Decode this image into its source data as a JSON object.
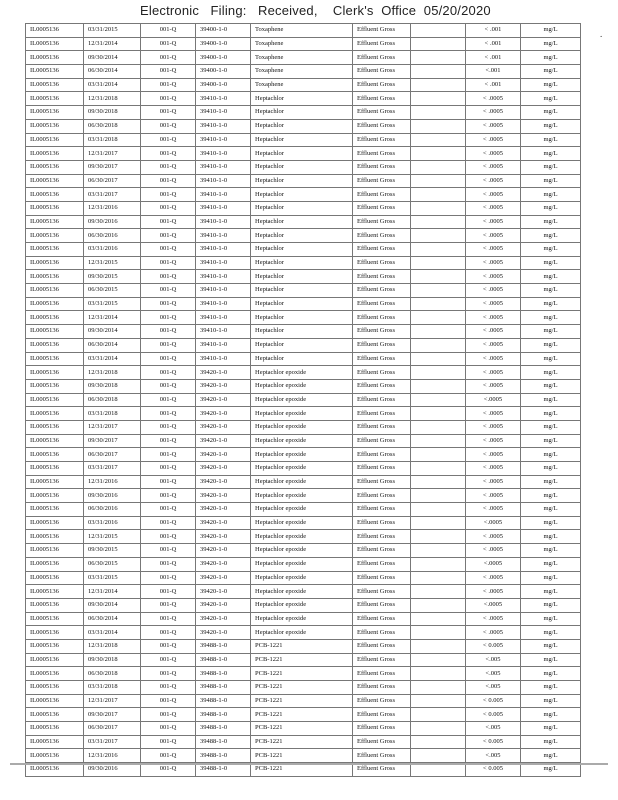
{
  "stamp": "Electronic   Filing:   Received,    Clerk's  Office  05/20/2020",
  "rows": [
    [
      "IL0005136",
      "03/31/2015",
      "001-Q",
      "39400-1-0",
      "Toxaphene",
      "Effluent  Gross",
      "< .001",
      "mg/L"
    ],
    [
      "IL0005136",
      "12/31/2014",
      "001-Q",
      "39400-1-0",
      "Toxaphene",
      "Effluent  Gross",
      "< .001",
      "mg/L"
    ],
    [
      "IL0005136",
      "09/30/2014",
      "001-Q",
      "39400-1-0",
      "Toxaphene",
      "Effluent  Gross",
      "< .001",
      "mg/L"
    ],
    [
      "IL0005136",
      "06/30/2014",
      "001-Q",
      "39400-1-0",
      "Toxaphene",
      "Effluent  Gross",
      "<.001",
      "mg/L"
    ],
    [
      "IL0005136",
      "03/31/2014",
      "001-Q",
      "39400-1-0",
      "Toxaphene",
      "Effluent  Gross",
      "< .001",
      "mg/L"
    ],
    [
      "IL0005136",
      "12/31/2018",
      "001-Q",
      "39410-1-0",
      "Heptachlor",
      "Effluent  Gross",
      "< .0005",
      "mg/L"
    ],
    [
      "IL0005136",
      "09/30/2018",
      "001-Q",
      "39410-1-0",
      "Heptachlor",
      "Effluent  Gross",
      "< .0005",
      "mg/L"
    ],
    [
      "IL0005136",
      "06/30/2018",
      "001-Q",
      "39410-1-0",
      "Heptachlor",
      "Effluent  Gross",
      "< .0005",
      "mg/L"
    ],
    [
      "IL0005136",
      "03/31/2018",
      "001-Q",
      "39410-1-0",
      "Heptachlor",
      "Effluent  Gross",
      "< .0005",
      "mg/L"
    ],
    [
      "IL0005136",
      "12/31/2017",
      "001-Q",
      "39410-1-0",
      "Heptachlor",
      "Effluent  Gross",
      "< .0005",
      "mg/L"
    ],
    [
      "IL0005136",
      "09/30/2017",
      "001-Q",
      "39410-1-0",
      "Heptachlor",
      "Effluent  Gross",
      "< .0005",
      "mg/L"
    ],
    [
      "IL0005136",
      "06/30/2017",
      "001-Q",
      "39410-1-0",
      "Heptachlor",
      "Effluent  Gross",
      "< .0005",
      "mg/L"
    ],
    [
      "IL0005136",
      "03/31/2017",
      "001-Q",
      "39410-1-0",
      "Heptachlor",
      "Effluent  Gross",
      "< .0005",
      "mg/L"
    ],
    [
      "IL0005136",
      "12/31/2016",
      "001-Q",
      "39410-1-0",
      "Heptachlor",
      "Effluent  Gross",
      "< .0005",
      "mg/L"
    ],
    [
      "IL0005136",
      "09/30/2016",
      "001-Q",
      "39410-1-0",
      "Heptachlor",
      "Effluent  Gross",
      "< .0005",
      "mg/L"
    ],
    [
      "IL0005136",
      "06/30/2016",
      "001-Q",
      "39410-1-0",
      "Heptachlor",
      "Effluent  Gross",
      "< .0005",
      "mg/L"
    ],
    [
      "IL0005136",
      "03/31/2016",
      "001-Q",
      "39410-1-0",
      "Heptachlor",
      "Effluent  Gross",
      "< .0005",
      "mg/L"
    ],
    [
      "IL0005136",
      "12/31/2015",
      "001-Q",
      "39410-1-0",
      "Heptachlor",
      "Effluent  Gross",
      "< .0005",
      "mg/L"
    ],
    [
      "IL0005136",
      "09/30/2015",
      "001-Q",
      "39410-1-0",
      "Heptachlor",
      "Effluent  Gross",
      "< .0005",
      "mg/L"
    ],
    [
      "IL0005136",
      "06/30/2015",
      "001-Q",
      "39410-1-0",
      "Heptachlor",
      "Effluent  Gross",
      "< .0005",
      "mg/L"
    ],
    [
      "IL0005136",
      "03/31/2015",
      "001-Q",
      "39410-1-0",
      "Heptachlor",
      "Effluent  Gross",
      "< .0005",
      "mg/L"
    ],
    [
      "IL0005136",
      "12/31/2014",
      "001-Q",
      "39410-1-0",
      "Heptachlor",
      "Effluent  Gross",
      "< .0005",
      "mg/L"
    ],
    [
      "IL0005136",
      "09/30/2014",
      "001-Q",
      "39410-1-0",
      "Heptachlor",
      "Effluent  Gross",
      "< .0005",
      "mg/L"
    ],
    [
      "IL0005136",
      "06/30/2014",
      "001-Q",
      "39410-1-0",
      "Heptachlor",
      "Effluent  Gross",
      "< .0005",
      "mg/L"
    ],
    [
      "IL0005136",
      "03/31/2014",
      "001-Q",
      "39410-1-0",
      "Heptachlor",
      "Effluent  Gross",
      "< .0005",
      "mg/L"
    ],
    [
      "IL0005136",
      "12/31/2018",
      "001-Q",
      "39420-1-0",
      "Heptachlor  epoxide",
      "Effluent  Gross",
      "< .0005",
      "mg/L"
    ],
    [
      "IL0005136",
      "09/30/2018",
      "001-Q",
      "39420-1-0",
      "Heptachlor  epoxide",
      "Effluent  Gross",
      "< .0005",
      "mg/L"
    ],
    [
      "IL0005136",
      "06/30/2018",
      "001-Q",
      "39420-1-0",
      "Heptachlor  epoxide",
      "Effluent  Gross",
      "<.0005",
      "mg/L"
    ],
    [
      "IL0005136",
      "03/31/2018",
      "001-Q",
      "39420-1-0",
      "Heptachlor  epoxide",
      "Effluent  Gross",
      "< .0005",
      "mg/L"
    ],
    [
      "IL0005136",
      "12/31/2017",
      "001-Q",
      "39420-1-0",
      "Heptachlor  epoxide",
      "Effluent  Gross",
      "< .0005",
      "mg/L"
    ],
    [
      "IL0005136",
      "09/30/2017",
      "001-Q",
      "39420-1-0",
      "Heptachlor epoxide",
      "Effluent  Gross",
      "< .0005",
      "mg/L"
    ],
    [
      "IL0005136",
      "06/30/2017",
      "001-Q",
      "39420-1-0",
      "Heptachlor  epoxide",
      "Effluent  Gross",
      "< .0005",
      "mg/L"
    ],
    [
      "IL0005136",
      "03/31/2017",
      "001-Q",
      "39420-1-0",
      "Heptachlor  epoxide",
      "Effluent  Gross",
      "< .0005",
      "mg/L"
    ],
    [
      "IL0005136",
      "12/31/2016",
      "001-Q",
      "39420-1-0",
      "Heptachlor epoxide",
      "Effluent  Gross",
      "< .0005",
      "mg/L"
    ],
    [
      "IL0005136",
      "09/30/2016",
      "001-Q",
      "39420-1-0",
      "Heptachlor  epoxide",
      "Effluent  Gross",
      "< .0005",
      "mg/L"
    ],
    [
      "IL0005136",
      "06/30/2016",
      "001-Q",
      "39420-1-0",
      "Heptachlor  epoxide",
      "Effluent  Gross",
      "< .0005",
      "mg/L"
    ],
    [
      "IL0005136",
      "03/31/2016",
      "001-Q",
      "39420-1-0",
      "Heptachlor  epoxide",
      "Effluent  Gross",
      "<.0005",
      "mg/L"
    ],
    [
      "IL0005136",
      "12/31/2015",
      "001-Q",
      "39420-1-0",
      "Heptachlor  epoxide",
      "Effluent  Gross",
      "< .0005",
      "mg/L"
    ],
    [
      "IL0005136",
      "09/30/2015",
      "001-Q",
      "39420-1-0",
      "Heptachlor  epoxide",
      "Effluent  Gross",
      "< .0005",
      "mg/L"
    ],
    [
      "IL0005136",
      "06/30/2015",
      "001-Q",
      "39420-1-0",
      "Heptachlor  epoxide",
      "Effluent  Gross",
      "<.0005",
      "mg/L"
    ],
    [
      "IL0005136",
      "03/31/2015",
      "001-Q",
      "39420-1-0",
      "Heptachlor  epoxide",
      "Effluent  Gross",
      "< .0005",
      "mg/L"
    ],
    [
      "IL0005136",
      "12/31/2014",
      "001-Q",
      "39420-1-0",
      "Heptachlor  epoxide",
      "Effluent  Gross",
      "< .0005",
      "mg/L"
    ],
    [
      "IL0005136",
      "09/30/2014",
      "001-Q",
      "39420-1-0",
      "Heptachlor  epoxide",
      "Effluent  Gross",
      "<.0005",
      "mg/L"
    ],
    [
      "IL0005136",
      "06/30/2014",
      "001-Q",
      "39420-1-0",
      "Heptachlor  epoxide",
      "Effluent  Gross",
      "< .0005",
      "mg/L"
    ],
    [
      "IL0005136",
      "03/31/2014",
      "001-Q",
      "39420-1-0",
      "Heptachlor  epoxide",
      "Effluent  Gross",
      "< .0005",
      "mg/L"
    ],
    [
      "IL0005136",
      "12/31/2018",
      "001-Q",
      "39488-1-0",
      "PCB-1221",
      "Effluent  Gross",
      "< 0.005",
      "mg/L"
    ],
    [
      "IL0005136",
      "09/30/2018",
      "001-Q",
      "39488-1-0",
      "PCB-1221",
      "Effluent  Gross",
      "<.005",
      "mg/L"
    ],
    [
      "IL0005136",
      "06/30/2018",
      "001-Q",
      "39488-1-0",
      "PCB-1221",
      "Effluent  Gross",
      "<.005",
      "mg/L"
    ],
    [
      "IL0005136",
      "03/31/2018",
      "001-Q",
      "39488-1-0",
      "PCB-1221",
      "Effluent  Gross",
      "<.005",
      "mg/L"
    ],
    [
      "IL0005136",
      "12/31/2017",
      "001-Q",
      "39488-1-0",
      "PCB-1221",
      "Effluent  Gross",
      "< 0.005",
      "mg/L"
    ],
    [
      "IL0005136",
      "09/30/2017",
      "001-Q",
      "39488-1-0",
      "PCB-1221",
      "Effluent  Gross",
      "< 0.005",
      "mg/L"
    ],
    [
      "IL0005136",
      "06/30/2017",
      "001-Q",
      "39488-1-0",
      "PCB-1221",
      "Effluent  Gross",
      "<.005",
      "mg/L"
    ],
    [
      "IL0005136",
      "03/31/2017",
      "001-Q",
      "39488-1-0",
      "PCB-1221",
      "Effluent  Gross",
      "< 0.005",
      "mg/L"
    ],
    [
      "IL0005136",
      "12/31/2016",
      "001-Q",
      "39488-1-0",
      "PCB-1221",
      "Effluent  Gross",
      "<.005",
      "mg/L"
    ],
    [
      "IL0005136",
      "09/30/2016",
      "001-Q",
      "39488-1-0",
      "PCB-1221",
      "Effluent  Gross",
      "< 0.005",
      "mg/L"
    ]
  ]
}
